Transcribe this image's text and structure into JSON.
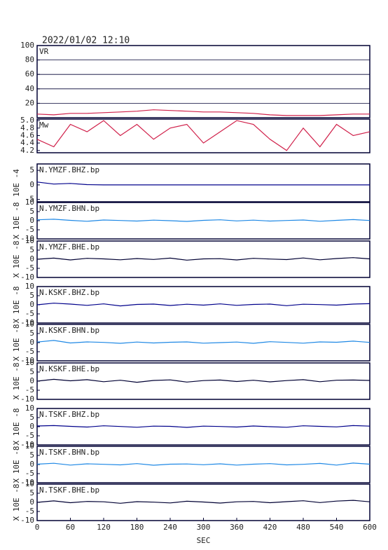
{
  "timestamp": "2022/01/02 12:10",
  "chart_data": [
    {
      "type": "line",
      "xlim": [
        0,
        600
      ],
      "ylim": [
        0,
        100
      ],
      "yticks": [
        20,
        40,
        60,
        80,
        100
      ],
      "grid": true,
      "x": [
        0,
        30,
        60,
        90,
        120,
        150,
        180,
        210,
        240,
        270,
        300,
        330,
        360,
        390,
        420,
        450,
        480,
        510,
        540,
        570,
        600
      ],
      "series": [
        {
          "name": "VR",
          "color": "#d0204a",
          "values": [
            5,
            4,
            6,
            6,
            7,
            8,
            9,
            11,
            10,
            9,
            8,
            8,
            7,
            6,
            4,
            3,
            3,
            3,
            4,
            5,
            5
          ]
        }
      ]
    },
    {
      "type": "line",
      "xlim": [
        0,
        600
      ],
      "ylim": [
        4.14,
        5.04
      ],
      "yticks": [
        4.2,
        4.4,
        4.6,
        4.8,
        {
          "value": 5,
          "label": "5.0"
        }
      ],
      "grid": false,
      "x": [
        0,
        30,
        60,
        90,
        120,
        150,
        180,
        210,
        240,
        270,
        300,
        330,
        360,
        390,
        420,
        450,
        480,
        510,
        540,
        570,
        600
      ],
      "series": [
        {
          "name": "Mw",
          "color": "#d0204a",
          "values": [
            4.5,
            4.3,
            4.9,
            4.7,
            5.0,
            4.6,
            4.9,
            4.5,
            4.8,
            4.9,
            4.4,
            4.7,
            5.0,
            4.9,
            4.5,
            4.2,
            4.8,
            4.3,
            4.9,
            4.6,
            4.7
          ]
        }
      ]
    },
    {
      "type": "line",
      "ylabel": "10E -4",
      "xlim": [
        0,
        600
      ],
      "ylim": [
        -5.8,
        7.2
      ],
      "yticks": [
        -5,
        0,
        5
      ],
      "grid": false,
      "x": [
        0,
        30,
        60,
        90,
        120,
        150,
        180,
        210,
        240,
        270,
        300,
        330,
        360,
        390,
        420,
        450,
        480,
        510,
        540,
        570,
        600
      ],
      "series": [
        {
          "name": "N.YMZF.BHZ.bp",
          "color": "#00008b",
          "values": [
            1,
            0.3,
            0.5,
            0.1,
            0,
            0,
            0,
            0,
            0,
            0,
            0,
            0,
            0,
            0,
            0,
            0,
            0,
            0,
            0,
            0,
            0
          ]
        }
      ]
    },
    {
      "type": "line",
      "ylabel": "X 10E -8",
      "xlim": [
        0,
        600
      ],
      "ylim": [
        -10,
        10
      ],
      "yticks": [
        -10,
        -5,
        0,
        5,
        10
      ],
      "grid": false,
      "x": [
        0,
        30,
        60,
        90,
        120,
        150,
        180,
        210,
        240,
        270,
        300,
        330,
        360,
        390,
        420,
        450,
        480,
        510,
        540,
        570,
        600
      ],
      "series": [
        {
          "name": "N.YMZF.BHN.bp",
          "color": "#1e88e5",
          "values": [
            0.5,
            0.8,
            0.2,
            -0.3,
            0.4,
            0.1,
            -0.2,
            0.3,
            0,
            -0.4,
            0.2,
            0.5,
            -0.1,
            0.3,
            -0.2,
            0.1,
            0.4,
            -0.3,
            0.2,
            0.6,
            0.1
          ]
        }
      ]
    },
    {
      "type": "line",
      "ylabel": "X 10E -8",
      "xlim": [
        0,
        600
      ],
      "ylim": [
        -10,
        10
      ],
      "yticks": [
        -10,
        -5,
        0,
        5,
        10
      ],
      "grid": false,
      "x": [
        0,
        30,
        60,
        90,
        120,
        150,
        180,
        210,
        240,
        270,
        300,
        330,
        360,
        390,
        420,
        450,
        480,
        510,
        540,
        570,
        600
      ],
      "series": [
        {
          "name": "N.YMZF.BHE.bp",
          "color": "#000033",
          "values": [
            0,
            0.6,
            -0.4,
            0.5,
            0.2,
            -0.3,
            0.4,
            -0.1,
            0.6,
            -0.5,
            0.2,
            0.3,
            -0.4,
            0.5,
            0.1,
            -0.2,
            0.7,
            -0.3,
            0.4,
            0.9,
            0.2
          ]
        }
      ]
    },
    {
      "type": "line",
      "ylabel": "X 10E -8",
      "xlim": [
        0,
        600
      ],
      "ylim": [
        -10,
        10
      ],
      "yticks": [
        -10,
        -5,
        0,
        5,
        10
      ],
      "grid": false,
      "x": [
        0,
        30,
        60,
        90,
        120,
        150,
        180,
        210,
        240,
        270,
        300,
        330,
        360,
        390,
        420,
        450,
        480,
        510,
        540,
        570,
        600
      ],
      "series": [
        {
          "name": "N.KSKF.BHZ.bp",
          "color": "#00008b",
          "values": [
            0,
            0.9,
            0.4,
            -0.3,
            0.5,
            -0.6,
            0.2,
            0.4,
            -0.4,
            0.3,
            -0.2,
            0.5,
            -0.3,
            0.2,
            0.4,
            -0.5,
            0.3,
            0.1,
            -0.2,
            0.4,
            0.6
          ]
        }
      ]
    },
    {
      "type": "line",
      "ylabel": "X 10E -8",
      "xlim": [
        0,
        600
      ],
      "ylim": [
        -10,
        10
      ],
      "yticks": [
        -10,
        -5,
        0,
        5,
        10
      ],
      "grid": false,
      "x": [
        0,
        30,
        60,
        90,
        120,
        150,
        180,
        210,
        240,
        270,
        300,
        330,
        360,
        390,
        420,
        450,
        480,
        510,
        540,
        570,
        600
      ],
      "series": [
        {
          "name": "N.KSKF.BHN.bp",
          "color": "#1e88e5",
          "values": [
            0.3,
            1.2,
            -0.2,
            0.4,
            0.1,
            -0.4,
            0.3,
            -0.2,
            0.2,
            0.4,
            -0.3,
            0,
            0.3,
            -0.4,
            0.5,
            0.1,
            -0.3,
            0.4,
            0.2,
            0.8,
            0.1
          ]
        }
      ]
    },
    {
      "type": "line",
      "ylabel": "X 10E -8",
      "xlim": [
        0,
        600
      ],
      "ylim": [
        -10,
        10
      ],
      "yticks": [
        -10,
        -5,
        0,
        5,
        10
      ],
      "grid": false,
      "x": [
        0,
        30,
        60,
        90,
        120,
        150,
        180,
        210,
        240,
        270,
        300,
        330,
        360,
        390,
        420,
        450,
        480,
        510,
        540,
        570,
        600
      ],
      "series": [
        {
          "name": "N.KSKF.BHE.bp",
          "color": "#000033",
          "values": [
            0,
            1.0,
            0.2,
            0.8,
            -0.3,
            0.5,
            -0.6,
            0.4,
            0.7,
            -0.5,
            0.3,
            0.6,
            -0.2,
            0.5,
            -0.4,
            0.3,
            0.8,
            -0.3,
            0.5,
            0.6,
            0.4
          ]
        }
      ]
    },
    {
      "type": "line",
      "ylabel": "X 10E -8",
      "xlim": [
        0,
        600
      ],
      "ylim": [
        -10,
        10
      ],
      "yticks": [
        -10,
        -5,
        0,
        5,
        10
      ],
      "grid": false,
      "x": [
        0,
        30,
        60,
        90,
        120,
        150,
        180,
        210,
        240,
        270,
        300,
        330,
        360,
        390,
        420,
        450,
        480,
        510,
        540,
        570,
        600
      ],
      "series": [
        {
          "name": "N.TSKF.BHZ.bp",
          "color": "#00008b",
          "values": [
            0.4,
            0.6,
            0.2,
            -0.2,
            0.5,
            0.1,
            -0.3,
            0.3,
            0.2,
            -0.4,
            0.3,
            0.1,
            -0.2,
            0.4,
            0,
            -0.3,
            0.5,
            0.2,
            -0.1,
            0.6,
            0.3
          ]
        }
      ]
    },
    {
      "type": "line",
      "ylabel": "X 10E -8",
      "xlim": [
        0,
        600
      ],
      "ylim": [
        -10,
        10
      ],
      "yticks": [
        -10,
        -5,
        0,
        5,
        10
      ],
      "grid": false,
      "x": [
        0,
        30,
        60,
        90,
        120,
        150,
        180,
        210,
        240,
        270,
        300,
        330,
        360,
        390,
        420,
        450,
        480,
        510,
        540,
        570,
        600
      ],
      "series": [
        {
          "name": "N.TSKF.BHN.bp",
          "color": "#1e88e5",
          "values": [
            0.2,
            0.7,
            -0.3,
            0.4,
            0.1,
            -0.2,
            0.5,
            -0.4,
            0.2,
            0.3,
            -0.1,
            0.4,
            -0.3,
            0.2,
            0.5,
            -0.2,
            0.1,
            0.6,
            -0.3,
            0.8,
            0.2
          ]
        }
      ]
    },
    {
      "type": "line",
      "ylabel": "X 10E -8",
      "xlim": [
        0,
        600
      ],
      "ylim": [
        -10,
        10
      ],
      "yticks": [
        -10,
        -5,
        0,
        5,
        10
      ],
      "grid": false,
      "xticks": [
        0,
        60,
        120,
        180,
        240,
        300,
        360,
        420,
        480,
        540,
        600
      ],
      "xlabel": "SEC",
      "x": [
        0,
        30,
        60,
        90,
        120,
        150,
        180,
        210,
        240,
        270,
        300,
        330,
        360,
        390,
        420,
        450,
        480,
        510,
        540,
        570,
        600
      ],
      "series": [
        {
          "name": "N.TSKF.BHE.bp",
          "color": "#000033",
          "values": [
            0,
            0.8,
            -0.2,
            0.5,
            0.3,
            -0.5,
            0.4,
            0.1,
            -0.3,
            0.6,
            0.2,
            -0.4,
            0.3,
            0.5,
            -0.2,
            0.4,
            0.9,
            -0.1,
            0.7,
            1.1,
            0.3
          ]
        }
      ]
    }
  ]
}
